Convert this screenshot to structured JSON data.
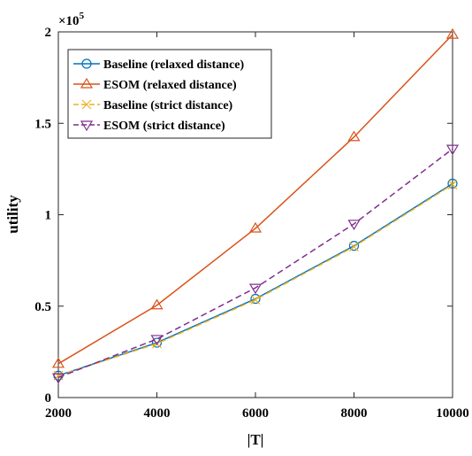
{
  "chart_data": {
    "type": "line",
    "xlabel": "|T|",
    "ylabel": "utility",
    "y_exponent_label": "×10",
    "y_exponent_power": "5",
    "x": [
      2000,
      4000,
      6000,
      8000,
      10000
    ],
    "x_ticks": [
      "2000",
      "4000",
      "6000",
      "8000",
      "10000"
    ],
    "y_ticks": [
      0,
      0.5,
      1,
      1.5,
      2
    ],
    "y_tick_labels": [
      "0",
      "0.5",
      "1",
      "1.5",
      "2"
    ],
    "xlim": [
      2000,
      10000
    ],
    "ylim": [
      0,
      200000
    ],
    "legend_position": "top-left",
    "grid": false,
    "series": [
      {
        "name": "Baseline (relaxed distance)",
        "values": [
          12000,
          30000,
          54000,
          83000,
          117000
        ],
        "color": "#0072BD",
        "marker": "circle",
        "dash": "solid"
      },
      {
        "name": "ESOM (relaxed distance)",
        "values": [
          18500,
          50500,
          92500,
          142500,
          198500
        ],
        "color": "#D95319",
        "marker": "triangle-up",
        "dash": "solid"
      },
      {
        "name": "Baseline (strict distance)",
        "values": [
          12000,
          29500,
          53500,
          82500,
          116500
        ],
        "color": "#EDB120",
        "marker": "x",
        "dash": "dashed"
      },
      {
        "name": "ESOM (strict distance)",
        "values": [
          11000,
          32000,
          60000,
          95000,
          136000
        ],
        "color": "#7E2F8E",
        "marker": "triangle-down",
        "dash": "dashed"
      }
    ]
  }
}
